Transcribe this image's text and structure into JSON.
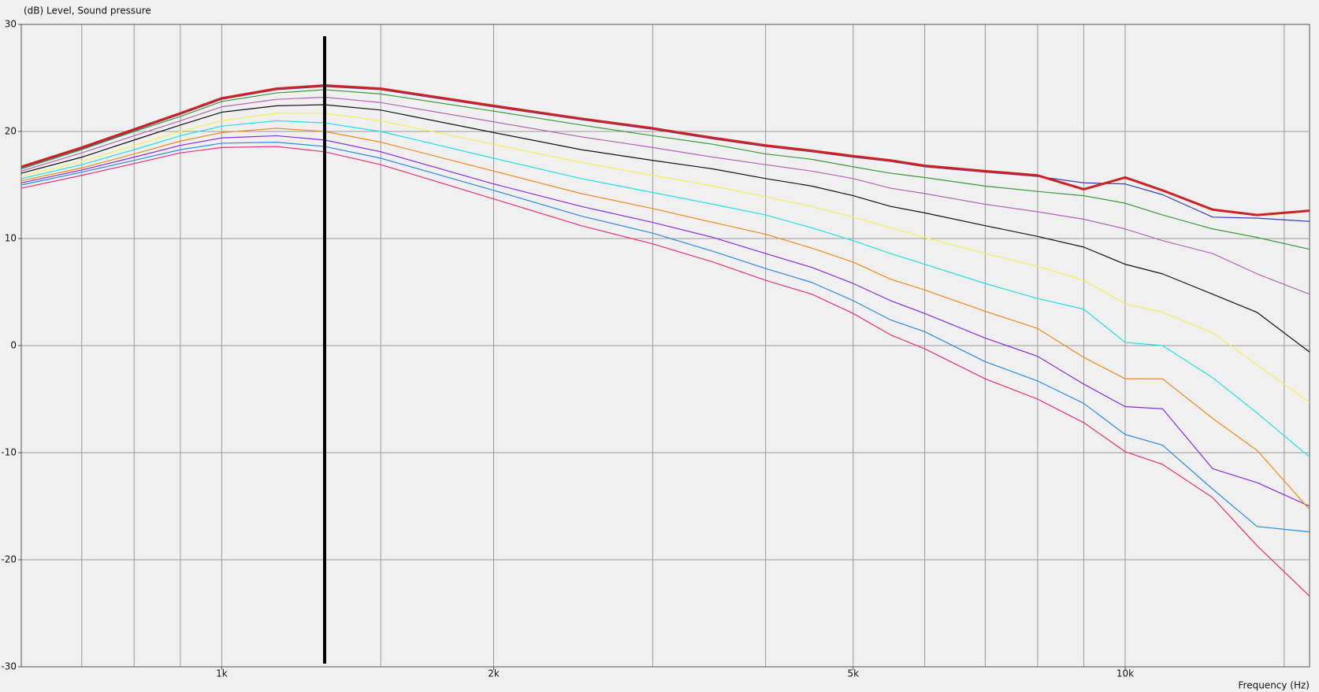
{
  "chart_data": {
    "type": "line",
    "log_x": true,
    "grid": true,
    "y_label": "(dB)  Level, Sound pressure",
    "x_label": "Frequency  (Hz)",
    "xlim": [
      600,
      16000
    ],
    "ylim": [
      -30,
      30
    ],
    "yticks": [
      30,
      20,
      10,
      0,
      -10,
      -20,
      -30
    ],
    "xticks": [
      {
        "value": 1000,
        "label": "1k"
      },
      {
        "value": 2000,
        "label": "2k"
      },
      {
        "value": 5000,
        "label": "5k"
      },
      {
        "value": 10000,
        "label": "10k"
      }
    ],
    "xgrid": [
      700,
      800,
      900,
      1000,
      1500,
      2000,
      3000,
      4000,
      5000,
      6000,
      7000,
      8000,
      9000,
      10000,
      15000
    ],
    "cursor": 1300,
    "x": [
      600,
      700,
      800,
      900,
      1000,
      1150,
      1300,
      1500,
      2000,
      2500,
      3000,
      3500,
      4000,
      4500,
      5000,
      5500,
      6000,
      7000,
      8000,
      9000,
      10000,
      11000,
      12500,
      14000,
      16000
    ],
    "series": [
      {
        "color": "#e8307a",
        "values": [
          14.7,
          15.9,
          17.0,
          18.0,
          18.5,
          18.6,
          18.1,
          16.9,
          13.7,
          11.2,
          9.5,
          7.8,
          6.1,
          4.8,
          3.0,
          1.0,
          -0.3,
          -3.1,
          -5.0,
          -7.2,
          -9.9,
          -11.1,
          -14.2,
          -18.7,
          -23.4
        ]
      },
      {
        "color": "#2a8ae8",
        "values": [
          15.0,
          16.2,
          17.3,
          18.3,
          18.9,
          19.0,
          18.6,
          17.5,
          14.5,
          12.1,
          10.5,
          8.8,
          7.2,
          5.9,
          4.2,
          2.4,
          1.3,
          -1.5,
          -3.3,
          -5.4,
          -8.3,
          -9.3,
          -13.4,
          -16.9,
          -17.4
        ]
      },
      {
        "color": "#8a2be2",
        "values": [
          15.2,
          16.4,
          17.6,
          18.7,
          19.4,
          19.6,
          19.2,
          18.1,
          15.1,
          13.0,
          11.5,
          10.1,
          8.6,
          7.3,
          5.8,
          4.2,
          3.0,
          0.7,
          -1.0,
          -3.6,
          -5.7,
          -5.9,
          -11.5,
          -12.8,
          -15.0
        ]
      },
      {
        "color": "#f08a1a",
        "values": [
          15.4,
          16.6,
          17.9,
          19.1,
          19.9,
          20.3,
          20.0,
          19.0,
          16.3,
          14.2,
          12.8,
          11.5,
          10.4,
          9.1,
          7.8,
          6.2,
          5.2,
          3.2,
          1.6,
          -1.1,
          -3.1,
          -3.1,
          -6.8,
          -9.8,
          -15.3
        ]
      },
      {
        "color": "#22e0e8",
        "values": [
          15.6,
          16.9,
          18.3,
          19.6,
          20.5,
          21.0,
          20.8,
          20.0,
          17.5,
          15.6,
          14.3,
          13.2,
          12.2,
          11.0,
          9.8,
          8.6,
          7.6,
          5.8,
          4.4,
          3.4,
          0.3,
          0.0,
          -3.0,
          -6.3,
          -10.4
        ]
      },
      {
        "color": "#f2f25a",
        "values": [
          15.8,
          17.2,
          18.7,
          20.0,
          21.0,
          21.7,
          21.7,
          21.0,
          18.8,
          17.1,
          15.9,
          14.9,
          13.9,
          13.0,
          12.0,
          11.0,
          10.1,
          8.6,
          7.4,
          6.1,
          3.9,
          3.1,
          1.2,
          -1.8,
          -5.3
        ]
      },
      {
        "color": "#111111",
        "values": [
          16.1,
          17.6,
          19.2,
          20.6,
          21.8,
          22.4,
          22.5,
          22.0,
          19.9,
          18.3,
          17.3,
          16.5,
          15.6,
          14.9,
          14.0,
          13.0,
          12.4,
          11.2,
          10.2,
          9.2,
          7.6,
          6.7,
          4.8,
          3.1,
          -0.6
        ]
      },
      {
        "color": "#b464b4",
        "values": [
          16.3,
          18.0,
          19.6,
          21.0,
          22.3,
          23.0,
          23.2,
          22.7,
          20.9,
          19.5,
          18.5,
          17.6,
          16.9,
          16.3,
          15.6,
          14.7,
          14.2,
          13.2,
          12.5,
          11.8,
          10.9,
          9.8,
          8.6,
          6.7,
          4.8
        ]
      },
      {
        "color": "#3c9a3c",
        "values": [
          16.5,
          18.3,
          20.0,
          21.4,
          22.8,
          23.6,
          23.9,
          23.5,
          21.9,
          20.6,
          19.6,
          18.8,
          17.9,
          17.4,
          16.7,
          16.1,
          15.7,
          14.9,
          14.4,
          14.0,
          13.3,
          12.2,
          10.9,
          10.1,
          9.0
        ]
      },
      {
        "color": "#3a3ab8",
        "values": [
          16.6,
          18.4,
          20.1,
          21.6,
          23.0,
          23.9,
          24.2,
          23.9,
          22.3,
          21.1,
          20.2,
          19.3,
          18.6,
          18.1,
          17.6,
          17.2,
          16.7,
          16.2,
          15.8,
          15.2,
          15.1,
          14.1,
          12.0,
          11.9,
          11.6
        ]
      },
      {
        "color": "#cc2222",
        "width": 3,
        "values": [
          16.7,
          18.5,
          20.2,
          21.7,
          23.1,
          24.0,
          24.3,
          24.0,
          22.4,
          21.2,
          20.3,
          19.4,
          18.7,
          18.2,
          17.7,
          17.3,
          16.8,
          16.3,
          15.9,
          14.6,
          15.7,
          14.5,
          12.7,
          12.2,
          12.6
        ]
      }
    ]
  }
}
